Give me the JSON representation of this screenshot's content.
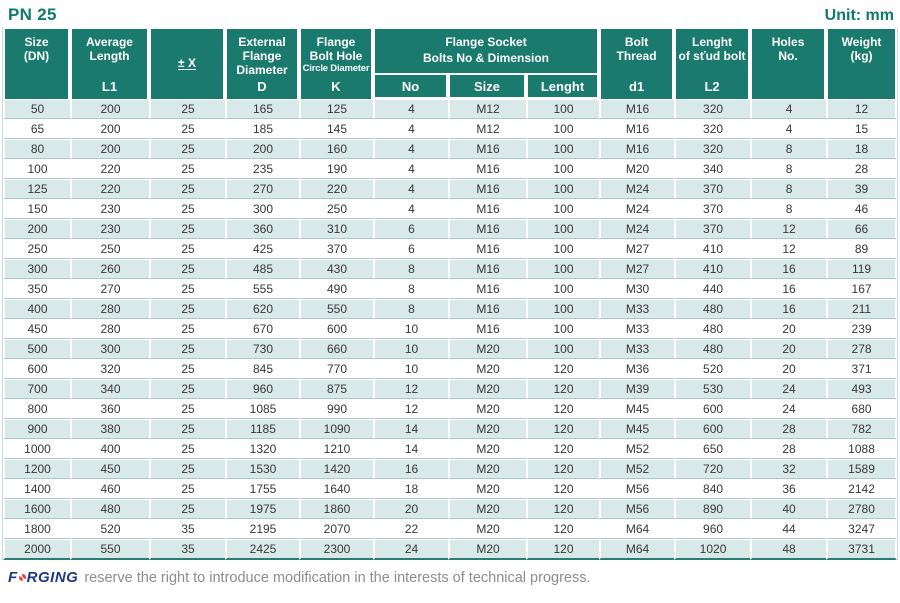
{
  "page": {
    "title": "PN 25",
    "unit": "Unit: mm"
  },
  "colors": {
    "header_teal": "#1a7a6e",
    "stripe_teal": "#d9e8e8",
    "title_teal": "#0e7a68",
    "logo_navy": "#1d3a8a",
    "logo_red": "#e63c2f"
  },
  "table": {
    "columns": {
      "size": {
        "l1": "Size",
        "l2": "(DN)",
        "sub": ""
      },
      "avg": {
        "l1": "Average",
        "l2": "Length",
        "sub": "L1"
      },
      "tol": {
        "l1": "± X",
        "sub": ""
      },
      "ext": {
        "l1": "External",
        "l2": "Flange",
        "l3": "Diameter",
        "sub": "D"
      },
      "bolthole": {
        "l1": "Flange",
        "l2": "Bolt Hole",
        "l3": "Circle Diameter",
        "sub": "K"
      },
      "group": {
        "l1": "Flange Socket",
        "l2": "Bolts No & Dimension"
      },
      "no": {
        "l1": "No"
      },
      "bsize": {
        "l1": "Size"
      },
      "blen": {
        "l1": "Lenght"
      },
      "thread": {
        "l1": "Bolt",
        "l2": "Thread",
        "sub": "d1"
      },
      "stud": {
        "l1": "Lenght",
        "l2": "of sťud bolt",
        "sub": "L2"
      },
      "holes": {
        "l1": "Holes",
        "l2": "No.",
        "sub": ""
      },
      "weight": {
        "l1": "Weight",
        "l2": "(kg)",
        "sub": ""
      }
    },
    "rows": [
      [
        "50",
        "200",
        "25",
        "165",
        "125",
        "4",
        "M12",
        "100",
        "M16",
        "320",
        "4",
        "12"
      ],
      [
        "65",
        "200",
        "25",
        "185",
        "145",
        "4",
        "M12",
        "100",
        "M16",
        "320",
        "4",
        "15"
      ],
      [
        "80",
        "200",
        "25",
        "200",
        "160",
        "4",
        "M16",
        "100",
        "M16",
        "320",
        "8",
        "18"
      ],
      [
        "100",
        "220",
        "25",
        "235",
        "190",
        "4",
        "M16",
        "100",
        "M20",
        "340",
        "8",
        "28"
      ],
      [
        "125",
        "220",
        "25",
        "270",
        "220",
        "4",
        "M16",
        "100",
        "M24",
        "370",
        "8",
        "39"
      ],
      [
        "150",
        "230",
        "25",
        "300",
        "250",
        "4",
        "M16",
        "100",
        "M24",
        "370",
        "8",
        "46"
      ],
      [
        "200",
        "230",
        "25",
        "360",
        "310",
        "6",
        "M16",
        "100",
        "M24",
        "370",
        "12",
        "66"
      ],
      [
        "250",
        "250",
        "25",
        "425",
        "370",
        "6",
        "M16",
        "100",
        "M27",
        "410",
        "12",
        "89"
      ],
      [
        "300",
        "260",
        "25",
        "485",
        "430",
        "8",
        "M16",
        "100",
        "M27",
        "410",
        "16",
        "119"
      ],
      [
        "350",
        "270",
        "25",
        "555",
        "490",
        "8",
        "M16",
        "100",
        "M30",
        "440",
        "16",
        "167"
      ],
      [
        "400",
        "280",
        "25",
        "620",
        "550",
        "8",
        "M16",
        "100",
        "M33",
        "480",
        "16",
        "211"
      ],
      [
        "450",
        "280",
        "25",
        "670",
        "600",
        "10",
        "M16",
        "100",
        "M33",
        "480",
        "20",
        "239"
      ],
      [
        "500",
        "300",
        "25",
        "730",
        "660",
        "10",
        "M20",
        "100",
        "M33",
        "480",
        "20",
        "278"
      ],
      [
        "600",
        "320",
        "25",
        "845",
        "770",
        "10",
        "M20",
        "120",
        "M36",
        "520",
        "20",
        "371"
      ],
      [
        "700",
        "340",
        "25",
        "960",
        "875",
        "12",
        "M20",
        "120",
        "M39",
        "530",
        "24",
        "493"
      ],
      [
        "800",
        "360",
        "25",
        "1085",
        "990",
        "12",
        "M20",
        "120",
        "M45",
        "600",
        "24",
        "680"
      ],
      [
        "900",
        "380",
        "25",
        "1185",
        "1090",
        "14",
        "M20",
        "120",
        "M45",
        "600",
        "28",
        "782"
      ],
      [
        "1000",
        "400",
        "25",
        "1320",
        "1210",
        "14",
        "M20",
        "120",
        "M52",
        "650",
        "28",
        "1088"
      ],
      [
        "1200",
        "450",
        "25",
        "1530",
        "1420",
        "16",
        "M20",
        "120",
        "M52",
        "720",
        "32",
        "1589"
      ],
      [
        "1400",
        "460",
        "25",
        "1755",
        "1640",
        "18",
        "M20",
        "120",
        "M56",
        "840",
        "36",
        "2142"
      ],
      [
        "1600",
        "480",
        "25",
        "1975",
        "1860",
        "20",
        "M20",
        "120",
        "M56",
        "890",
        "40",
        "2780"
      ],
      [
        "1800",
        "520",
        "35",
        "2195",
        "2070",
        "22",
        "M20",
        "120",
        "M64",
        "960",
        "44",
        "3247"
      ],
      [
        "2000",
        "550",
        "35",
        "2425",
        "2300",
        "24",
        "M20",
        "120",
        "M64",
        "1020",
        "48",
        "3731"
      ]
    ]
  },
  "footer": {
    "brand_f": "F",
    "brand_rest": "RGING",
    "text": "reserve the right to introduce modification in the interests of technical progress."
  }
}
